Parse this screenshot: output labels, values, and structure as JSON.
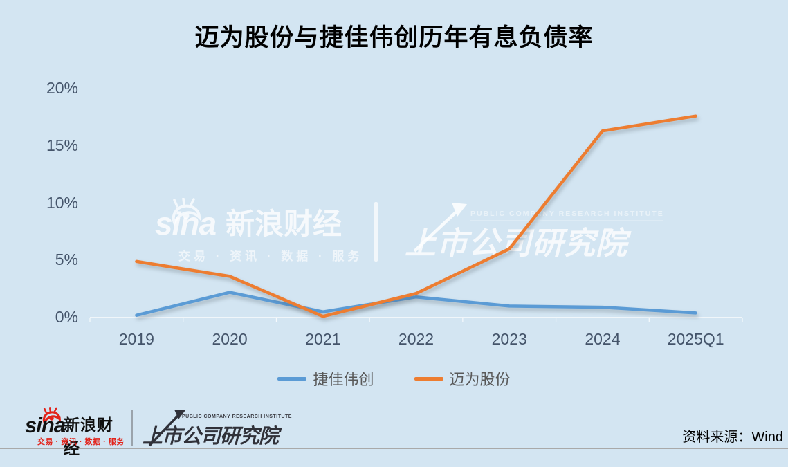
{
  "title": "迈为股份与捷佳伟创历年有息负债率",
  "chart_data": {
    "type": "line",
    "title": "迈为股份与捷佳伟创历年有息负债率",
    "categories": [
      "2019",
      "2020",
      "2021",
      "2022",
      "2023",
      "2024",
      "2025Q1"
    ],
    "series": [
      {
        "id": "jiejiaweichuang",
        "name": "捷佳伟创",
        "color": "#5B9BD5",
        "values": [
          0.2,
          2.2,
          0.5,
          1.8,
          1.0,
          0.9,
          0.4
        ]
      },
      {
        "id": "maiweigufen",
        "name": "迈为股份",
        "color": "#ED7D31",
        "values": [
          4.9,
          3.6,
          0.1,
          2.1,
          6.0,
          16.3,
          17.6
        ]
      }
    ],
    "y_ticks_percent": [
      0,
      5,
      10,
      15,
      20
    ],
    "y_tick_suffix": "%",
    "ylim": [
      0,
      20
    ],
    "xlabel": "",
    "ylabel": "",
    "grid": false,
    "legend_position": "bottom-center"
  },
  "watermark": {
    "sina_latin": "sina",
    "sina_cn": "新浪财经",
    "sina_tagline": "交易 · 资讯 · 数据 · 服务",
    "institute_en": "PUBLIC COMPANY RESEARCH INSTITUTE",
    "institute_cn": "上市公司研究院"
  },
  "footer": {
    "sina_latin": "sina",
    "sina_cn": "新浪财经",
    "sina_tagline": "交易 · 资讯 · 数据 · 服务",
    "institute_en": "PUBLIC COMPANY RESEARCH INSTITUTE",
    "institute_cn": "上市公司研究院",
    "source_note": "资料来源：Wind"
  },
  "colors": {
    "background": "#d3e5f2",
    "series_jiejiaweichuang": "#5B9BD5",
    "series_maiweigufen": "#ED7D31",
    "axis_label": "#44546A",
    "legend_text": "#595959",
    "title_text": "#000000",
    "axis_line": "rgba(255,255,255,0.85)",
    "footer_rule": "#a9a9a9",
    "sina_red": "#e2231a",
    "footer_logo_dark": "#303139"
  }
}
